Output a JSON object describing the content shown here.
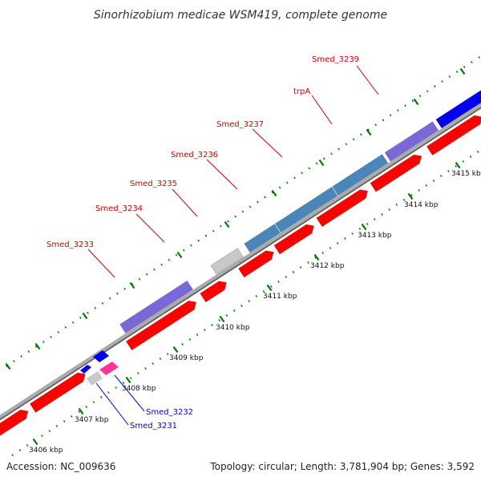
{
  "title": "Sinorhizobium medicae WSM419, complete genome",
  "footer": {
    "accession": "Accession: NC_009636",
    "stats": "Topology: circular; Length: 3,781,904 bp; Genes: 3,592"
  },
  "colors": {
    "cds_red": "#ff0000",
    "blue": "#0000ee",
    "steelblue": "#4a86b8",
    "purple": "#7b68d8",
    "gray": "#c8c8c8",
    "pink": "#ff3399",
    "backbone": "#888888",
    "tick_green": "#007700",
    "label_red": "#cc0000",
    "label_blue": "#0000cc"
  },
  "ruler": {
    "unit": "kbp",
    "ticks": [
      {
        "kbp": 3406,
        "label": "3406 kbp"
      },
      {
        "kbp": 3407,
        "label": "3407 kbp"
      },
      {
        "kbp": 3408,
        "label": "3408 kbp"
      },
      {
        "kbp": 3409,
        "label": "3409 kbp"
      },
      {
        "kbp": 3410,
        "label": "3410 kbp"
      },
      {
        "kbp": 3411,
        "label": "3411 kbp"
      },
      {
        "kbp": 3412,
        "label": "3412 kbp"
      },
      {
        "kbp": 3413,
        "label": "3413 kbp"
      },
      {
        "kbp": 3414,
        "label": "3414 kbp"
      },
      {
        "kbp": 3415,
        "label": "3415 kbp"
      }
    ]
  },
  "labeled_genes": [
    {
      "name": "Smed_3239",
      "color": "label_red"
    },
    {
      "name": "trpA",
      "color": "label_red"
    },
    {
      "name": "Smed_3237",
      "color": "label_red"
    },
    {
      "name": "Smed_3236",
      "color": "label_red"
    },
    {
      "name": "Smed_3235",
      "color": "label_red"
    },
    {
      "name": "Smed_3234",
      "color": "label_red"
    },
    {
      "name": "Smed_3233",
      "color": "label_red"
    },
    {
      "name": "Smed_3232",
      "color": "label_blue"
    },
    {
      "name": "Smed_3231",
      "color": "label_blue"
    }
  ]
}
